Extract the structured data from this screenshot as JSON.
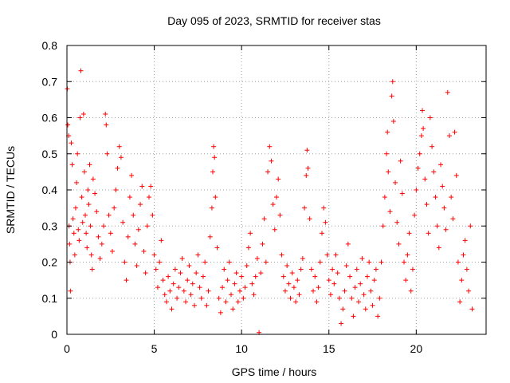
{
  "chart_data": {
    "type": "scatter",
    "title": "Day 095 of 2023, SRMTID for receiver stas",
    "xlabel": "GPS time / hours",
    "ylabel": "SRMTID / TECUs",
    "xlim": [
      0,
      24
    ],
    "ylim": [
      0,
      0.8
    ],
    "xticks": [
      0,
      5,
      10,
      15,
      20
    ],
    "yticks": [
      0,
      0.1,
      0.2,
      0.3,
      0.4,
      0.5,
      0.6,
      0.7,
      0.8
    ],
    "xtick_labels": [
      "0",
      "5",
      "10",
      "15",
      "20"
    ],
    "ytick_labels": [
      "0",
      "0.1",
      "0.2",
      "0.3",
      "0.4",
      "0.5",
      "0.6",
      "0.7",
      "0.8"
    ],
    "grid": true,
    "marker": "+",
    "color": "#ff0000",
    "series": [
      {
        "name": "stas",
        "points": [
          [
            0.02,
            0.68
          ],
          [
            0.05,
            0.58
          ],
          [
            0.1,
            0.55
          ],
          [
            0.12,
            0.3
          ],
          [
            0.15,
            0.25
          ],
          [
            0.18,
            0.2
          ],
          [
            0.2,
            0.12
          ],
          [
            0.25,
            0.53
          ],
          [
            0.3,
            0.47
          ],
          [
            0.35,
            0.32
          ],
          [
            0.4,
            0.28
          ],
          [
            0.45,
            0.22
          ],
          [
            0.5,
            0.35
          ],
          [
            0.55,
            0.42
          ],
          [
            0.6,
            0.5
          ],
          [
            0.65,
            0.29
          ],
          [
            0.7,
            0.26
          ],
          [
            0.75,
            0.6
          ],
          [
            0.8,
            0.73
          ],
          [
            0.85,
            0.38
          ],
          [
            0.9,
            0.31
          ],
          [
            0.95,
            0.61
          ],
          [
            1.0,
            0.45
          ],
          [
            1.05,
            0.33
          ],
          [
            1.1,
            0.28
          ],
          [
            1.15,
            0.24
          ],
          [
            1.2,
            0.4
          ],
          [
            1.25,
            0.36
          ],
          [
            1.3,
            0.47
          ],
          [
            1.35,
            0.3
          ],
          [
            1.4,
            0.22
          ],
          [
            1.45,
            0.18
          ],
          [
            1.5,
            0.43
          ],
          [
            1.6,
            0.39
          ],
          [
            1.7,
            0.34
          ],
          [
            1.8,
            0.27
          ],
          [
            1.9,
            0.21
          ],
          [
            2.0,
            0.25
          ],
          [
            2.1,
            0.3
          ],
          [
            2.2,
            0.61
          ],
          [
            2.25,
            0.58
          ],
          [
            2.3,
            0.5
          ],
          [
            2.4,
            0.33
          ],
          [
            2.5,
            0.28
          ],
          [
            2.6,
            0.23
          ],
          [
            2.7,
            0.35
          ],
          [
            2.8,
            0.4
          ],
          [
            2.9,
            0.46
          ],
          [
            3.0,
            0.52
          ],
          [
            3.1,
            0.49
          ],
          [
            3.2,
            0.31
          ],
          [
            3.3,
            0.2
          ],
          [
            3.4,
            0.15
          ],
          [
            3.5,
            0.27
          ],
          [
            3.6,
            0.38
          ],
          [
            3.7,
            0.44
          ],
          [
            3.8,
            0.33
          ],
          [
            3.9,
            0.25
          ],
          [
            4.0,
            0.19
          ],
          [
            4.1,
            0.29
          ],
          [
            4.2,
            0.36
          ],
          [
            4.3,
            0.41
          ],
          [
            4.4,
            0.23
          ],
          [
            4.5,
            0.17
          ],
          [
            4.6,
            0.3
          ],
          [
            4.7,
            0.38
          ],
          [
            4.8,
            0.41
          ],
          [
            4.9,
            0.33
          ],
          [
            5.0,
            0.22
          ],
          [
            5.1,
            0.18
          ],
          [
            5.2,
            0.13
          ],
          [
            5.3,
            0.2
          ],
          [
            5.4,
            0.26
          ],
          [
            5.5,
            0.15
          ],
          [
            5.6,
            0.11
          ],
          [
            5.7,
            0.09
          ],
          [
            5.8,
            0.16
          ],
          [
            5.9,
            0.12
          ],
          [
            6.0,
            0.07
          ],
          [
            6.1,
            0.14
          ],
          [
            6.2,
            0.18
          ],
          [
            6.3,
            0.1
          ],
          [
            6.4,
            0.13
          ],
          [
            6.5,
            0.17
          ],
          [
            6.6,
            0.21
          ],
          [
            6.7,
            0.12
          ],
          [
            6.8,
            0.09
          ],
          [
            6.9,
            0.15
          ],
          [
            7.0,
            0.19
          ],
          [
            7.1,
            0.11
          ],
          [
            7.2,
            0.14
          ],
          [
            7.3,
            0.08
          ],
          [
            7.4,
            0.17
          ],
          [
            7.5,
            0.22
          ],
          [
            7.6,
            0.13
          ],
          [
            7.7,
            0.1
          ],
          [
            7.8,
            0.16
          ],
          [
            7.9,
            0.2
          ],
          [
            8.0,
            0.08
          ],
          [
            8.1,
            0.12
          ],
          [
            8.2,
            0.27
          ],
          [
            8.3,
            0.35
          ],
          [
            8.35,
            0.45
          ],
          [
            8.4,
            0.52
          ],
          [
            8.45,
            0.49
          ],
          [
            8.5,
            0.38
          ],
          [
            8.6,
            0.24
          ],
          [
            8.7,
            0.1
          ],
          [
            8.8,
            0.06
          ],
          [
            8.9,
            0.13
          ],
          [
            9.0,
            0.18
          ],
          [
            9.1,
            0.09
          ],
          [
            9.2,
            0.15
          ],
          [
            9.3,
            0.2
          ],
          [
            9.4,
            0.11
          ],
          [
            9.5,
            0.07
          ],
          [
            9.6,
            0.14
          ],
          [
            9.7,
            0.17
          ],
          [
            9.8,
            0.09
          ],
          [
            9.9,
            0.12
          ],
          [
            10.0,
            0.16
          ],
          [
            10.1,
            0.1
          ],
          [
            10.2,
            0.13
          ],
          [
            10.3,
            0.19
          ],
          [
            10.4,
            0.24
          ],
          [
            10.5,
            0.28
          ],
          [
            10.6,
            0.14
          ],
          [
            10.7,
            0.11
          ],
          [
            10.8,
            0.16
          ],
          [
            10.9,
            0.21
          ],
          [
            11.0,
            0.005
          ],
          [
            11.1,
            0.17
          ],
          [
            11.2,
            0.25
          ],
          [
            11.3,
            0.32
          ],
          [
            11.4,
            0.2
          ],
          [
            11.5,
            0.45
          ],
          [
            11.6,
            0.52
          ],
          [
            11.7,
            0.48
          ],
          [
            11.8,
            0.36
          ],
          [
            11.9,
            0.29
          ],
          [
            12.0,
            0.38
          ],
          [
            12.1,
            0.43
          ],
          [
            12.2,
            0.33
          ],
          [
            12.3,
            0.22
          ],
          [
            12.4,
            0.16
          ],
          [
            12.5,
            0.12
          ],
          [
            12.6,
            0.19
          ],
          [
            12.7,
            0.14
          ],
          [
            12.8,
            0.1
          ],
          [
            12.9,
            0.17
          ],
          [
            13.0,
            0.13
          ],
          [
            13.1,
            0.09
          ],
          [
            13.2,
            0.15
          ],
          [
            13.3,
            0.11
          ],
          [
            13.4,
            0.18
          ],
          [
            13.5,
            0.21
          ],
          [
            13.6,
            0.35
          ],
          [
            13.7,
            0.44
          ],
          [
            13.75,
            0.51
          ],
          [
            13.8,
            0.46
          ],
          [
            13.9,
            0.32
          ],
          [
            14.0,
            0.18
          ],
          [
            14.1,
            0.12
          ],
          [
            14.2,
            0.16
          ],
          [
            14.3,
            0.09
          ],
          [
            14.4,
            0.13
          ],
          [
            14.5,
            0.2
          ],
          [
            14.6,
            0.28
          ],
          [
            14.7,
            0.35
          ],
          [
            14.8,
            0.31
          ],
          [
            14.9,
            0.22
          ],
          [
            15.0,
            0.15
          ],
          [
            15.1,
            0.11
          ],
          [
            15.2,
            0.18
          ],
          [
            15.3,
            0.14
          ],
          [
            15.4,
            0.22
          ],
          [
            15.5,
            0.17
          ],
          [
            15.6,
            0.1
          ],
          [
            15.7,
            0.03
          ],
          [
            15.8,
            0.07
          ],
          [
            15.9,
            0.12
          ],
          [
            16.0,
            0.19
          ],
          [
            16.1,
            0.25
          ],
          [
            16.2,
            0.16
          ],
          [
            16.3,
            0.1
          ],
          [
            16.4,
            0.05
          ],
          [
            16.5,
            0.13
          ],
          [
            16.6,
            0.18
          ],
          [
            16.7,
            0.09
          ],
          [
            16.8,
            0.14
          ],
          [
            16.9,
            0.21
          ],
          [
            17.0,
            0.11
          ],
          [
            17.1,
            0.07
          ],
          [
            17.2,
            0.16
          ],
          [
            17.3,
            0.2
          ],
          [
            17.4,
            0.12
          ],
          [
            17.5,
            0.08
          ],
          [
            17.6,
            0.15
          ],
          [
            17.7,
            0.18
          ],
          [
            17.8,
            0.05
          ],
          [
            17.9,
            0.1
          ],
          [
            18.0,
            0.2
          ],
          [
            18.1,
            0.3
          ],
          [
            18.2,
            0.38
          ],
          [
            18.3,
            0.5
          ],
          [
            18.35,
            0.56
          ],
          [
            18.4,
            0.45
          ],
          [
            18.5,
            0.34
          ],
          [
            18.6,
            0.66
          ],
          [
            18.65,
            0.7
          ],
          [
            18.7,
            0.59
          ],
          [
            18.8,
            0.42
          ],
          [
            18.9,
            0.31
          ],
          [
            19.0,
            0.25
          ],
          [
            19.1,
            0.48
          ],
          [
            19.2,
            0.39
          ],
          [
            19.3,
            0.2
          ],
          [
            19.4,
            0.15
          ],
          [
            19.5,
            0.22
          ],
          [
            19.6,
            0.28
          ],
          [
            19.7,
            0.12
          ],
          [
            19.8,
            0.18
          ],
          [
            19.9,
            0.33
          ],
          [
            20.0,
            0.4
          ],
          [
            20.1,
            0.46
          ],
          [
            20.2,
            0.5
          ],
          [
            20.3,
            0.55
          ],
          [
            20.35,
            0.62
          ],
          [
            20.4,
            0.57
          ],
          [
            20.5,
            0.43
          ],
          [
            20.6,
            0.36
          ],
          [
            20.7,
            0.28
          ],
          [
            20.8,
            0.6
          ],
          [
            20.9,
            0.52
          ],
          [
            21.0,
            0.45
          ],
          [
            21.1,
            0.38
          ],
          [
            21.2,
            0.3
          ],
          [
            21.3,
            0.24
          ],
          [
            21.4,
            0.47
          ],
          [
            21.5,
            0.41
          ],
          [
            21.6,
            0.35
          ],
          [
            21.7,
            0.29
          ],
          [
            21.8,
            0.67
          ],
          [
            21.9,
            0.55
          ],
          [
            22.0,
            0.38
          ],
          [
            22.1,
            0.32
          ],
          [
            22.2,
            0.56
          ],
          [
            22.3,
            0.44
          ],
          [
            22.4,
            0.2
          ],
          [
            22.5,
            0.09
          ],
          [
            22.6,
            0.15
          ],
          [
            22.7,
            0.22
          ],
          [
            22.8,
            0.26
          ],
          [
            22.9,
            0.18
          ],
          [
            23.0,
            0.12
          ],
          [
            23.1,
            0.3
          ],
          [
            23.2,
            0.07
          ]
        ]
      }
    ]
  }
}
